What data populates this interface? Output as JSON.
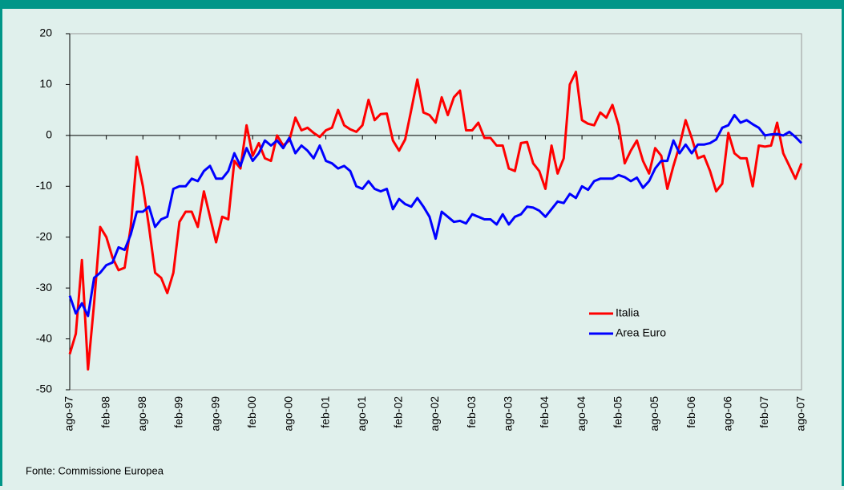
{
  "chart_data": {
    "type": "line",
    "categories": [
      "ago-97",
      null,
      null,
      null,
      null,
      null,
      "feb-98",
      null,
      null,
      null,
      null,
      null,
      "ago-98",
      null,
      null,
      null,
      null,
      null,
      "feb-99",
      null,
      null,
      null,
      null,
      null,
      "ago-99",
      null,
      null,
      null,
      null,
      null,
      "feb-00",
      null,
      null,
      null,
      null,
      null,
      "ago-00",
      null,
      null,
      null,
      null,
      null,
      "feb-01",
      null,
      null,
      null,
      null,
      null,
      "ago-01",
      null,
      null,
      null,
      null,
      null,
      "feb-02",
      null,
      null,
      null,
      null,
      null,
      "ago-02",
      null,
      null,
      null,
      null,
      null,
      "feb-03",
      null,
      null,
      null,
      null,
      null,
      "ago-03",
      null,
      null,
      null,
      null,
      null,
      "feb-04",
      null,
      null,
      null,
      null,
      null,
      "ago-04",
      null,
      null,
      null,
      null,
      null,
      "feb-05",
      null,
      null,
      null,
      null,
      null,
      "ago-05",
      null,
      null,
      null,
      null,
      null,
      "feb-06",
      null,
      null,
      null,
      null,
      null,
      "ago-06",
      null,
      null,
      null,
      null,
      null,
      "feb-07",
      null,
      null,
      null,
      null,
      null,
      "ago-07"
    ],
    "series": [
      {
        "name": "Italia",
        "color": "#ff0000",
        "values": [
          -43,
          -39,
          -24.5,
          -46,
          -33,
          -18,
          -20,
          -24,
          -26.5,
          -26,
          -18,
          -4.2,
          -10,
          -18,
          -27,
          -28,
          -31,
          -27,
          -17,
          -15,
          -15,
          -18,
          -11,
          -16,
          -21,
          -16,
          -16.5,
          -5,
          -6.5,
          2,
          -4,
          -1.5,
          -4.5,
          -5,
          0,
          -2,
          -1,
          3.5,
          1,
          1.5,
          0.5,
          -0.3,
          1,
          1.5,
          5,
          2,
          1.2,
          0.7,
          2,
          7,
          3,
          4.2,
          4.3,
          -1,
          -3,
          -0.8,
          5,
          11,
          4.5,
          4,
          2.5,
          7.5,
          4,
          7.5,
          8.8,
          1,
          1,
          2.5,
          -0.5,
          -0.5,
          -2,
          -2,
          -6.5,
          -7,
          -1.5,
          -1.3,
          -5.5,
          -7,
          -10.5,
          -2,
          -7.5,
          -4.5,
          10,
          12.5,
          3,
          2.3,
          2,
          4.5,
          3.5,
          6,
          2,
          -5.5,
          -3,
          -1,
          -5,
          -7.5,
          -2.5,
          -4,
          -10.5,
          -6,
          -2,
          3,
          -0.5,
          -4.5,
          -4,
          -7,
          -11,
          -9.5,
          0.5,
          -3.5,
          -4.5,
          -4.5,
          -10,
          -2,
          -2.2,
          -2,
          2.5,
          -3.5,
          -6,
          -8.5,
          -5.5
        ]
      },
      {
        "name": "Area Euro",
        "color": "#0000ff",
        "values": [
          -31.5,
          -35,
          -33,
          -35.5,
          -28,
          -27,
          -25.5,
          -25,
          -22,
          -22.5,
          -19.5,
          -15,
          -15,
          -14,
          -18,
          -16.5,
          -16,
          -10.5,
          -10,
          -10,
          -8.5,
          -9,
          -7,
          -6,
          -8.5,
          -8.5,
          -7,
          -3.5,
          -6,
          -2.5,
          -5,
          -3.5,
          -1,
          -2,
          -1,
          -2.5,
          -0.5,
          -3.5,
          -2,
          -3,
          -4.5,
          -2,
          -5,
          -5.5,
          -6.5,
          -6,
          -7,
          -10,
          -10.5,
          -9,
          -10.5,
          -11,
          -10.5,
          -14.5,
          -12.5,
          -13.5,
          -14,
          -12.3,
          -14,
          -16,
          -20.3,
          -15,
          -16,
          -17,
          -16.8,
          -17.3,
          -15.5,
          -16,
          -16.5,
          -16.5,
          -17.5,
          -15.5,
          -17.5,
          -16,
          -15.5,
          -14,
          -14.2,
          -14.8,
          -16,
          -14.5,
          -13,
          -13.3,
          -11.5,
          -12.3,
          -10,
          -10.7,
          -9,
          -8.5,
          -8.5,
          -8.5,
          -7.8,
          -8.2,
          -9,
          -8.3,
          -10.3,
          -9,
          -6.5,
          -5,
          -5,
          -1,
          -3.5,
          -1.8,
          -3.5,
          -1.8,
          -1.8,
          -1.5,
          -0.8,
          1.5,
          2,
          4,
          2.5,
          3,
          2.2,
          1.5,
          0,
          0.2,
          0.3,
          0,
          0.7,
          -0.3,
          -1.5
        ]
      }
    ],
    "ylim": [
      -50,
      20
    ],
    "yticks": [
      -50,
      -40,
      -30,
      -20,
      -10,
      0,
      10,
      20
    ],
    "source": "Fonte: Commissione Europea"
  }
}
